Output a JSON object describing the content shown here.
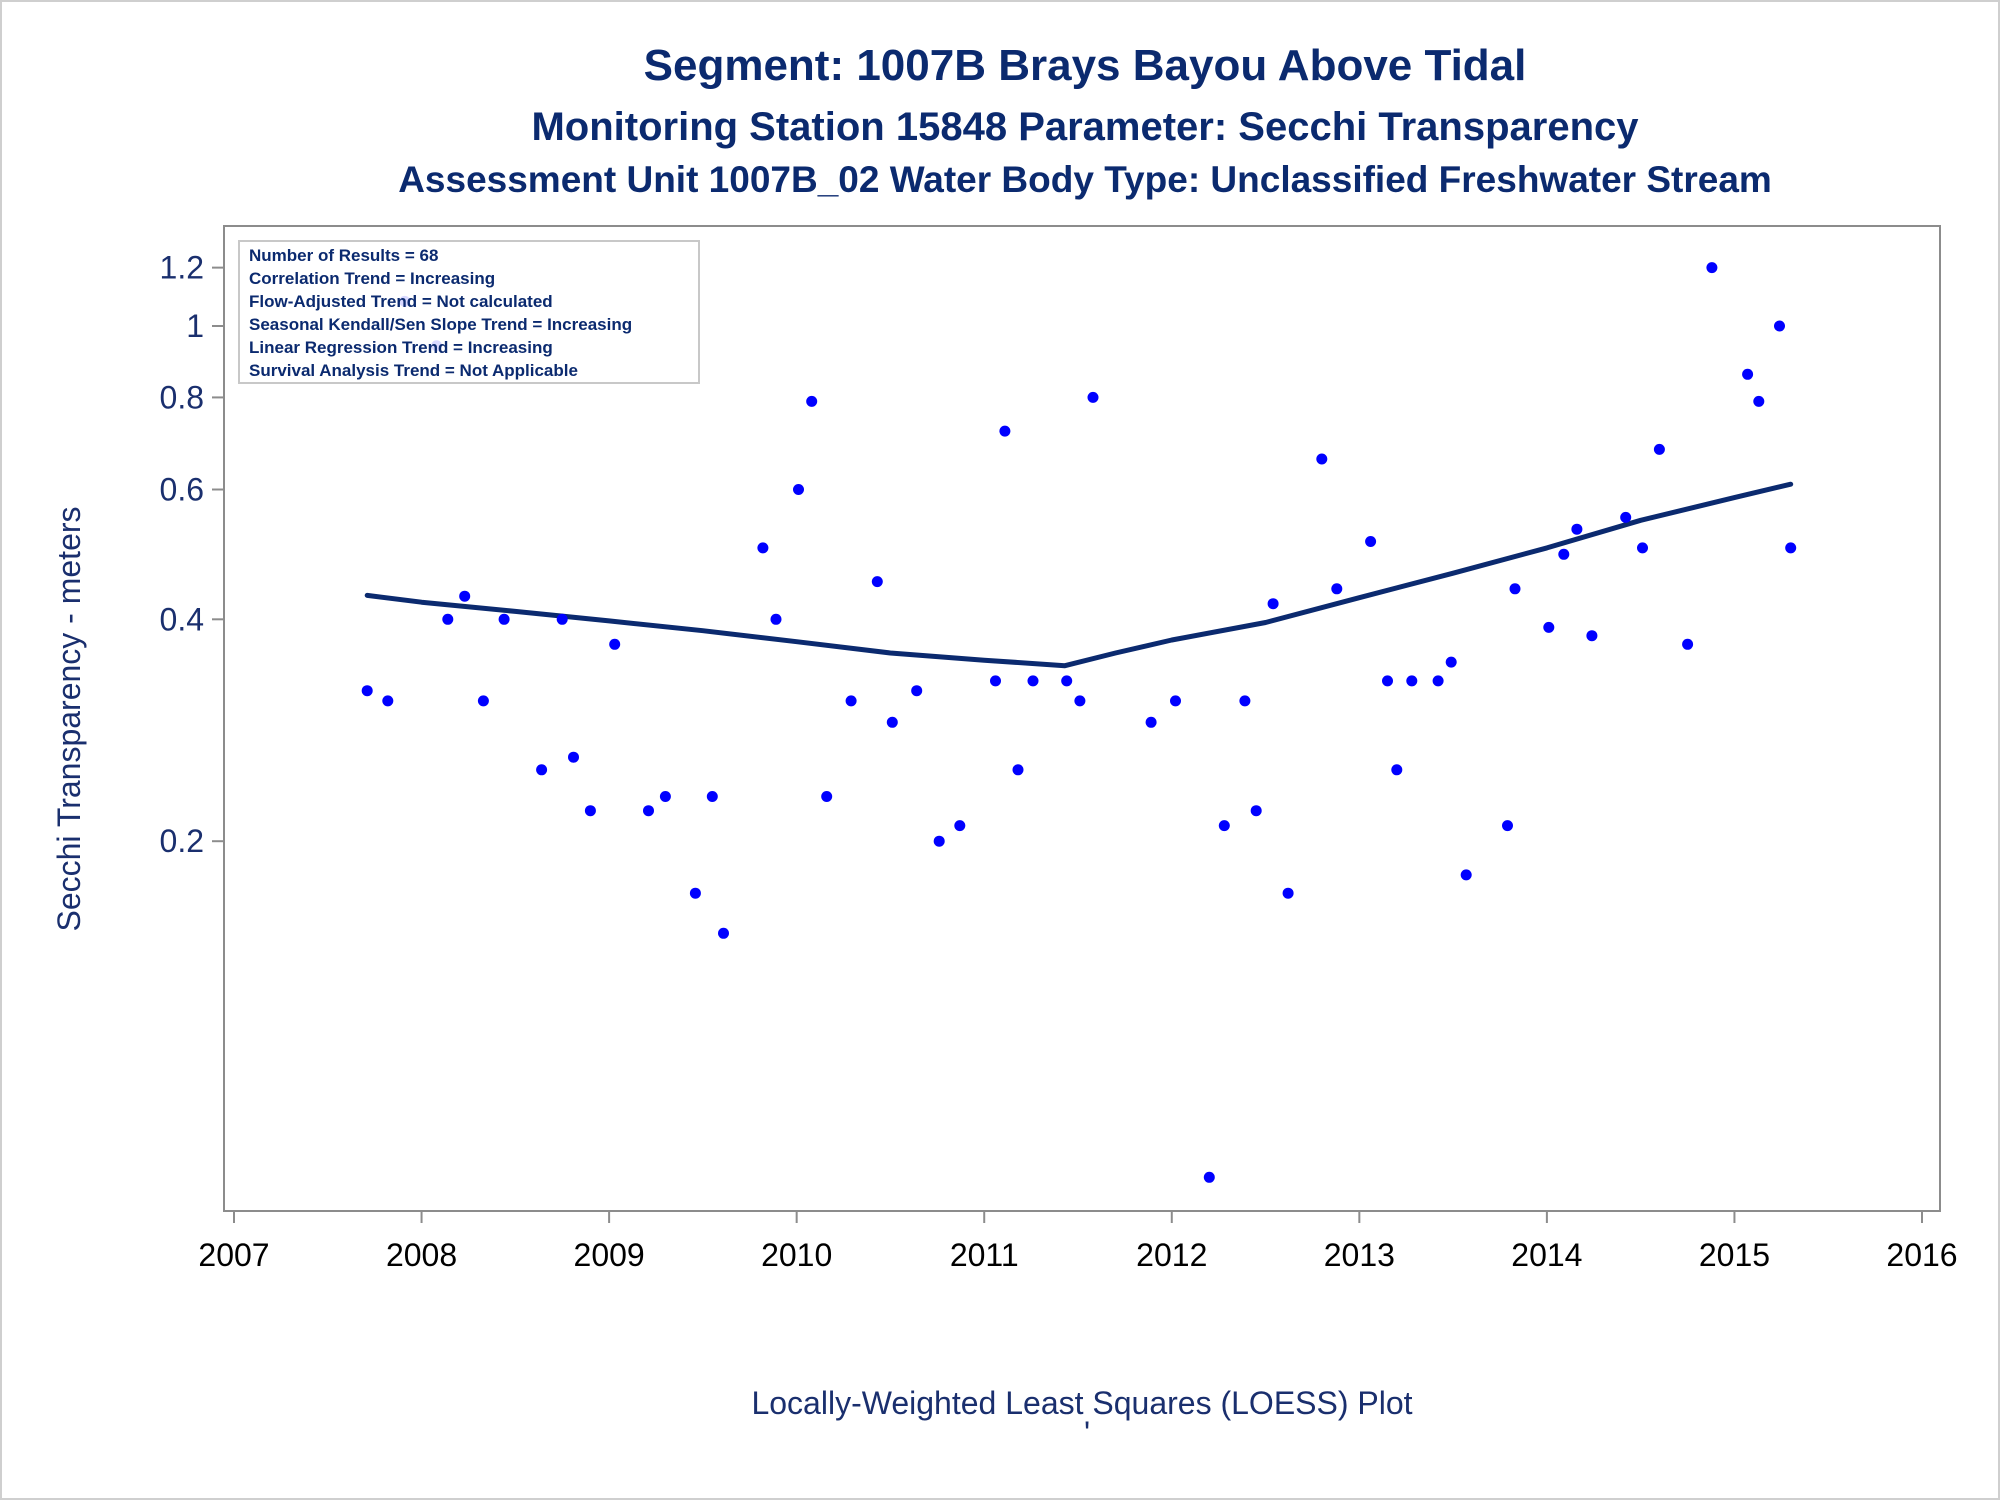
{
  "titles": {
    "line1": "Segment: 1007B  Brays Bayou Above Tidal",
    "line2": "Monitoring Station 15848 Parameter: Secchi Transparency",
    "line3": "Assessment Unit 1007B_02   Water Body Type: Unclassified Freshwater Stream"
  },
  "footnote": "Locally-Weighted Least Squares (LOESS) Plot",
  "footnote_mark": "'",
  "stats_box": [
    "Number of Results = 68",
    "Correlation Trend = Increasing",
    "Flow-Adjusted Trend = Not calculated",
    "Seasonal Kendall/Sen Slope Trend = Increasing",
    "Linear Regression Trend = Increasing",
    "Survival Analysis Trend = Not Applicable"
  ],
  "colors": {
    "title": "#0b2a6f",
    "axis_text": "#1a2f6e",
    "points": "#0000ff",
    "trend_line": "#0b2a6f",
    "axis_frame": "#8c8c8c"
  },
  "chart_data": {
    "type": "scatter",
    "xlabel": "",
    "ylabel": "Secchi Transparency - meters",
    "y_scale": "log",
    "xlim": [
      2007,
      2016
    ],
    "ylim": [
      0.065,
      1.3
    ],
    "x_ticks": [
      "2007",
      "2008",
      "2009",
      "2010",
      "2011",
      "2012",
      "2013",
      "2014",
      "2015",
      "2016"
    ],
    "y_ticks": [
      {
        "value": 0.2,
        "label": "0.2"
      },
      {
        "value": 0.4,
        "label": "0.4"
      },
      {
        "value": 0.6,
        "label": "0.6"
      },
      {
        "value": 0.8,
        "label": "0.8"
      },
      {
        "value": 1.0,
        "label": "1"
      },
      {
        "value": 1.2,
        "label": "1.2"
      }
    ],
    "grid": false,
    "points": {
      "x": [
        2007.71,
        2007.82,
        2007.91,
        2008.08,
        2008.14,
        2008.23,
        2008.33,
        2008.44,
        2008.64,
        2008.75,
        2008.81,
        2008.9,
        2009.03,
        2009.21,
        2009.3,
        2009.46,
        2009.55,
        2009.61,
        2009.82,
        2009.89,
        2010.01,
        2010.08,
        2010.16,
        2010.29,
        2010.43,
        2010.51,
        2010.64,
        2010.76,
        2010.87,
        2011.06,
        2011.11,
        2011.18,
        2011.26,
        2011.44,
        2011.51,
        2011.58,
        2011.89,
        2012.02,
        2012.2,
        2012.28,
        2012.39,
        2012.45,
        2012.54,
        2012.62,
        2012.8,
        2012.88,
        2013.06,
        2013.15,
        2013.2,
        2013.28,
        2013.42,
        2013.49,
        2013.57,
        2013.79,
        2013.83,
        2014.01,
        2014.09,
        2014.16,
        2014.24,
        2014.42,
        2014.51,
        2014.6,
        2014.75,
        2014.88,
        2015.07,
        2015.13,
        2015.24,
        2015.3
      ],
      "y": [
        0.32,
        0.31,
        1.08,
        0.94,
        0.4,
        0.43,
        0.31,
        0.4,
        0.25,
        0.4,
        0.26,
        0.22,
        0.37,
        0.22,
        0.23,
        0.17,
        0.23,
        0.15,
        0.5,
        0.4,
        0.6,
        0.79,
        0.23,
        0.31,
        0.45,
        0.29,
        0.32,
        0.2,
        0.21,
        0.33,
        0.72,
        0.25,
        0.33,
        0.33,
        0.31,
        0.8,
        0.29,
        0.31,
        0.07,
        0.21,
        0.31,
        0.22,
        0.42,
        0.17,
        0.66,
        0.44,
        0.51,
        0.33,
        0.25,
        0.33,
        0.33,
        0.35,
        0.18,
        0.21,
        0.44,
        0.39,
        0.49,
        0.53,
        0.38,
        0.55,
        0.5,
        0.68,
        0.37,
        1.2,
        0.86,
        0.79,
        1.0,
        0.5
      ]
    },
    "series": [
      {
        "type": "line",
        "x": [
          2007.71,
          2008.0,
          2008.5,
          2009.0,
          2009.5,
          2010.0,
          2010.5,
          2011.0,
          2011.43,
          2011.7,
          2012.0,
          2012.5,
          2013.0,
          2013.5,
          2014.0,
          2014.5,
          2015.0,
          2015.3
        ],
        "y": [
          0.431,
          0.422,
          0.41,
          0.398,
          0.386,
          0.373,
          0.36,
          0.352,
          0.346,
          0.36,
          0.375,
          0.396,
          0.428,
          0.462,
          0.5,
          0.545,
          0.585,
          0.61
        ]
      }
    ]
  }
}
